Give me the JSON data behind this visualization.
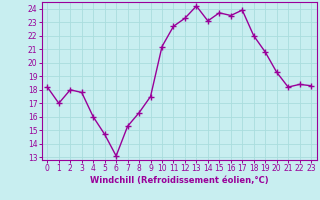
{
  "x": [
    0,
    1,
    2,
    3,
    4,
    5,
    6,
    7,
    8,
    9,
    10,
    11,
    12,
    13,
    14,
    15,
    16,
    17,
    18,
    19,
    20,
    21,
    22,
    23
  ],
  "y": [
    18.2,
    17.0,
    18.0,
    17.8,
    16.0,
    14.7,
    13.1,
    15.3,
    16.3,
    17.5,
    21.2,
    22.7,
    23.3,
    24.2,
    23.1,
    23.7,
    23.5,
    23.9,
    22.0,
    20.8,
    19.3,
    18.2,
    18.4,
    18.3
  ],
  "line_color": "#990099",
  "marker": "+",
  "marker_size": 4,
  "bg_color": "#c8eef0",
  "grid_color": "#aadddd",
  "xlabel": "Windchill (Refroidissement éolien,°C)",
  "xlabel_color": "#990099",
  "tick_color": "#990099",
  "spine_color": "#990099",
  "ylim": [
    12.8,
    24.5
  ],
  "xlim": [
    -0.5,
    23.5
  ],
  "yticks": [
    13,
    14,
    15,
    16,
    17,
    18,
    19,
    20,
    21,
    22,
    23,
    24
  ],
  "xticks": [
    0,
    1,
    2,
    3,
    4,
    5,
    6,
    7,
    8,
    9,
    10,
    11,
    12,
    13,
    14,
    15,
    16,
    17,
    18,
    19,
    20,
    21,
    22,
    23
  ],
  "tick_fontsize": 5.5,
  "xlabel_fontsize": 6.0,
  "linewidth": 1.0
}
